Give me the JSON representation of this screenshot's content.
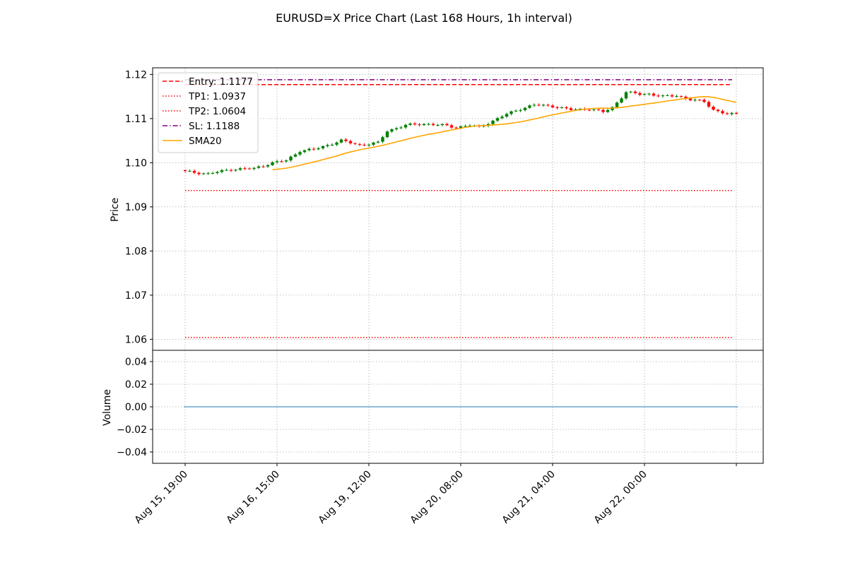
{
  "chart_data": {
    "type": "candlestick",
    "title": "EURUSD=X Price Chart (Last 168 Hours, 1h interval)",
    "price_panel": {
      "ylabel": "Price",
      "ylim": [
        1.0575,
        1.1215
      ],
      "yticks": [
        1.06,
        1.07,
        1.08,
        1.09,
        1.1,
        1.11,
        1.12
      ],
      "ytick_labels": [
        "1.06",
        "1.07",
        "1.08",
        "1.09",
        "1.10",
        "1.11",
        "1.12"
      ],
      "grid": true,
      "legend_position": "upper-left"
    },
    "volume_panel": {
      "ylabel": "Volume",
      "ylim": [
        -0.05,
        0.05
      ],
      "yticks": [
        -0.04,
        -0.02,
        0.0,
        0.02,
        0.04
      ],
      "ytick_labels": [
        "−0.04",
        "−0.02",
        "0.00",
        "0.02",
        "0.04"
      ],
      "values": "all 0",
      "grid": true
    },
    "x_axis": {
      "n_bars": 121,
      "tick_indices": [
        0,
        20,
        40,
        60,
        80,
        100,
        120
      ],
      "tick_labels": [
        "Aug 15, 19:00",
        "Aug 16, 15:00",
        "Aug 19, 12:00",
        "Aug 20, 08:00",
        "Aug 21, 04:00",
        "Aug 22, 00:00",
        ""
      ]
    },
    "levels": [
      {
        "name": "Entry: 1.1177",
        "value": 1.1177,
        "color": "#ff0000",
        "style": "dashed"
      },
      {
        "name": "TP1: 1.0937",
        "value": 1.0937,
        "color": "#ff0000",
        "style": "dotted"
      },
      {
        "name": "TP2: 1.0604",
        "value": 1.0604,
        "color": "#ff0000",
        "style": "dotted"
      },
      {
        "name": "SL: 1.1188",
        "value": 1.1188,
        "color": "#800080",
        "style": "dashdot"
      }
    ],
    "sma": {
      "name": "SMA20",
      "color": "#ffa500",
      "start_index": 19
    },
    "candle_colors": {
      "up": "#008000",
      "down": "#ff0000"
    },
    "close_anchors": [
      [
        0,
        1.098
      ],
      [
        5,
        1.0975
      ],
      [
        10,
        1.0985
      ],
      [
        15,
        1.0987
      ],
      [
        19,
        1.1
      ],
      [
        22,
        1.1005
      ],
      [
        25,
        1.1027
      ],
      [
        28,
        1.103
      ],
      [
        31,
        1.104
      ],
      [
        34,
        1.105
      ],
      [
        38,
        1.104
      ],
      [
        42,
        1.1045
      ],
      [
        44,
        1.1072
      ],
      [
        48,
        1.1085
      ],
      [
        52,
        1.1088
      ],
      [
        56,
        1.1085
      ],
      [
        59,
        1.108
      ],
      [
        62,
        1.1085
      ],
      [
        64,
        1.108
      ],
      [
        67,
        1.1095
      ],
      [
        70,
        1.111
      ],
      [
        73,
        1.1122
      ],
      [
        76,
        1.1131
      ],
      [
        80,
        1.1128
      ],
      [
        84,
        1.112
      ],
      [
        88,
        1.1122
      ],
      [
        91,
        1.1115
      ],
      [
        93,
        1.1125
      ],
      [
        96,
        1.116
      ],
      [
        99,
        1.1155
      ],
      [
        101,
        1.1156
      ],
      [
        104,
        1.115
      ],
      [
        107,
        1.1152
      ],
      [
        110,
        1.1143
      ],
      [
        113,
        1.1138
      ],
      [
        115,
        1.112
      ],
      [
        118,
        1.111
      ],
      [
        120,
        1.111
      ]
    ]
  }
}
